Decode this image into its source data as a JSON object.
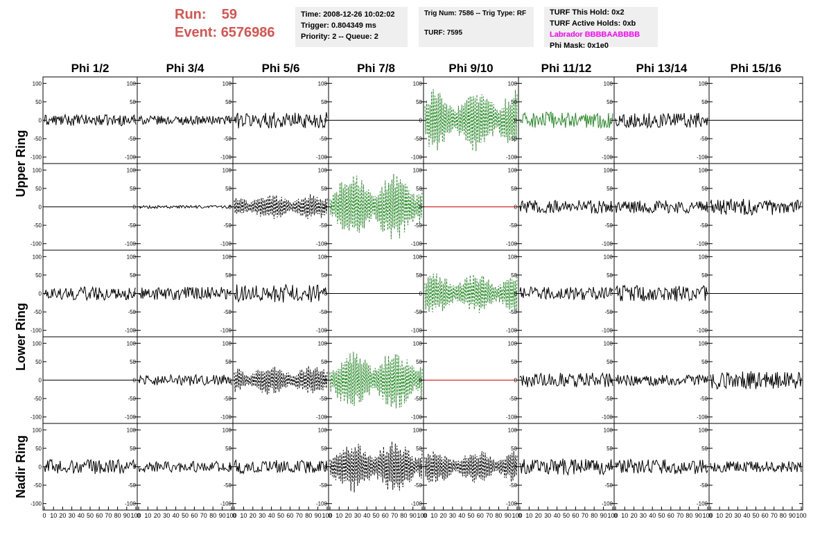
{
  "header": {
    "run_label": "Run:",
    "run_value": "59",
    "event_label": "Event:",
    "event_value": "6576986",
    "time": "Time: 2008-12-26 10:02:02",
    "trigger": "Trigger: 0.804349 ms",
    "priority": "Priority: 2 -- Queue: 2",
    "trig": "Trig Num: 7586 -- Trig Type: RF",
    "turf": "TURF: 7595",
    "turf_hold": "TURF This Hold: 0x2",
    "turf_active": "TURF Active Holds: 0xb",
    "labrador": "Labrador BBBBAABBBB",
    "phi_mask": "Phi Mask: 0x1e0",
    "labrador_color": "#ff00ff",
    "run_color": "#d9534f"
  },
  "columns": [
    "Phi 1/2",
    "Phi 3/4",
    "Phi 5/6",
    "Phi 7/8",
    "Phi 9/10",
    "Phi 11/12",
    "Phi 13/14",
    "Phi 15/16"
  ],
  "ring_labels": [
    {
      "text": "Upper Ring",
      "rows": [
        0,
        1
      ]
    },
    {
      "text": "Lower Ring",
      "rows": [
        2,
        3
      ]
    },
    {
      "text": "Nadir Ring",
      "rows": [
        4
      ]
    }
  ],
  "x_ticks": [
    "0",
    "10",
    "20",
    "30",
    "40",
    "50",
    "60",
    "70",
    "80",
    "90",
    "100"
  ],
  "chart_data": {
    "type": "line",
    "title": "",
    "xlabel": "",
    "ylabel": "",
    "xlim": [
      0,
      100
    ],
    "ylim": [
      -110,
      110
    ],
    "y_ticks": [
      100,
      50,
      0,
      -50,
      -100
    ],
    "x_ticks": [
      0,
      10,
      20,
      30,
      40,
      50,
      60,
      70,
      80,
      90,
      100
    ],
    "colors": {
      "black": "#000000",
      "green": "#228b22",
      "red": "#cc0000"
    },
    "panels": [
      [
        {
          "style": "noise",
          "color": "black",
          "amp": 15,
          "dash": false
        },
        {
          "style": "noise",
          "color": "black",
          "amp": 12,
          "dash": false
        },
        {
          "style": "noise",
          "color": "black",
          "amp": 22,
          "dash": false
        },
        {
          "style": "flat",
          "color": "black",
          "amp": 0,
          "dash": false
        },
        {
          "style": "burst",
          "color": "green",
          "amp": 85,
          "dash": true
        },
        {
          "style": "noise",
          "color": "green",
          "amp": 22,
          "dash": false
        },
        {
          "style": "noise",
          "color": "black",
          "amp": 20,
          "dash": false
        },
        {
          "style": "flat",
          "color": "black",
          "amp": 0,
          "dash": false
        }
      ],
      [
        {
          "style": "flat",
          "color": "black",
          "amp": 0,
          "dash": false
        },
        {
          "style": "noise",
          "color": "black",
          "amp": 4,
          "dash": false
        },
        {
          "style": "burst",
          "color": "black",
          "amp": 35,
          "dash": true
        },
        {
          "style": "burst",
          "color": "green",
          "amp": 90,
          "dash": true
        },
        {
          "style": "flat",
          "color": "red",
          "amp": 0,
          "dash": false
        },
        {
          "style": "noise",
          "color": "black",
          "amp": 18,
          "dash": false
        },
        {
          "style": "noise",
          "color": "black",
          "amp": 18,
          "dash": false
        },
        {
          "style": "noise",
          "color": "black",
          "amp": 22,
          "dash": false
        }
      ],
      [
        {
          "style": "noise",
          "color": "black",
          "amp": 18,
          "dash": false
        },
        {
          "style": "noise",
          "color": "black",
          "amp": 18,
          "dash": false
        },
        {
          "style": "noise",
          "color": "black",
          "amp": 25,
          "dash": false
        },
        {
          "style": "flat",
          "color": "black",
          "amp": 0,
          "dash": false
        },
        {
          "style": "burst",
          "color": "green",
          "amp": 55,
          "dash": true
        },
        {
          "style": "noise",
          "color": "black",
          "amp": 18,
          "dash": false
        },
        {
          "style": "noise",
          "color": "black",
          "amp": 22,
          "dash": false
        },
        {
          "style": "flat",
          "color": "black",
          "amp": 0,
          "dash": false
        }
      ],
      [
        {
          "style": "flat",
          "color": "black",
          "amp": 0,
          "dash": false
        },
        {
          "style": "noise",
          "color": "black",
          "amp": 15,
          "dash": false
        },
        {
          "style": "burst",
          "color": "black",
          "amp": 40,
          "dash": true
        },
        {
          "style": "burst",
          "color": "green",
          "amp": 80,
          "dash": true
        },
        {
          "style": "flat",
          "color": "red",
          "amp": 0,
          "dash": false
        },
        {
          "style": "noise",
          "color": "black",
          "amp": 20,
          "dash": false
        },
        {
          "style": "noise",
          "color": "black",
          "amp": 15,
          "dash": false
        },
        {
          "style": "noise",
          "color": "black",
          "amp": 25,
          "dash": false
        }
      ],
      [
        {
          "style": "noise",
          "color": "black",
          "amp": 20,
          "dash": false
        },
        {
          "style": "noise",
          "color": "black",
          "amp": 15,
          "dash": false
        },
        {
          "style": "noise",
          "color": "black",
          "amp": 18,
          "dash": false
        },
        {
          "style": "burst",
          "color": "black",
          "amp": 70,
          "dash": true
        },
        {
          "style": "burst",
          "color": "black",
          "amp": 45,
          "dash": true
        },
        {
          "style": "noise",
          "color": "black",
          "amp": 22,
          "dash": false
        },
        {
          "style": "noise",
          "color": "black",
          "amp": 20,
          "dash": false
        },
        {
          "style": "noise",
          "color": "black",
          "amp": 15,
          "dash": false
        }
      ]
    ]
  }
}
